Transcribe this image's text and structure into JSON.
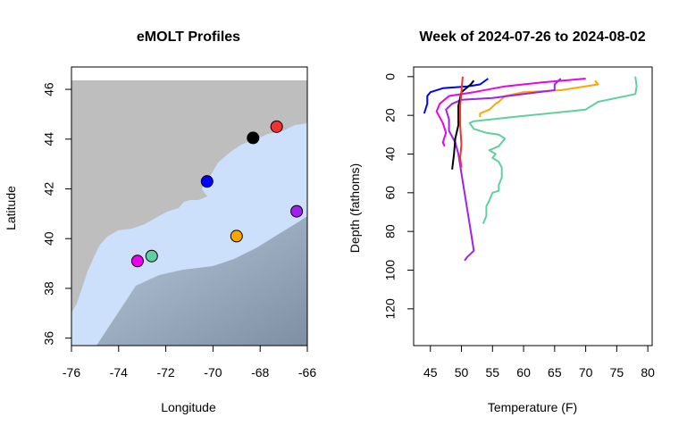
{
  "chart_data": [
    {
      "type": "scatter",
      "title": "eMOLT Profiles",
      "xlabel": "Longitude",
      "ylabel": "Latitude",
      "xlim": [
        -76,
        -66
      ],
      "ylim": [
        35.7,
        46.9
      ],
      "xticks": [
        "-76",
        "-74",
        "-72",
        "-70",
        "-68",
        "-66"
      ],
      "yticks": [
        "36",
        "38",
        "40",
        "42",
        "44",
        "46"
      ],
      "background": "map (land grey, ocean bathymetry blue)",
      "points": [
        {
          "x": -68.3,
          "y": 44.05,
          "color": "#000000"
        },
        {
          "x": -67.3,
          "y": 44.5,
          "color": "#ee3333"
        },
        {
          "x": -70.25,
          "y": 42.3,
          "color": "#0000ff"
        },
        {
          "x": -66.45,
          "y": 41.1,
          "color": "#a020f0"
        },
        {
          "x": -69.0,
          "y": 40.1,
          "color": "#ffa500"
        },
        {
          "x": -72.6,
          "y": 39.3,
          "color": "#5fcfa0"
        },
        {
          "x": -73.2,
          "y": 39.1,
          "color": "#ee00ee"
        }
      ]
    },
    {
      "type": "line",
      "title": "Week of 2024-07-26 to 2024-08-02",
      "xlabel": "Temperature (F)",
      "ylabel": "Depth (fathoms)",
      "xlim": [
        42.3,
        80.7
      ],
      "ylim": [
        139,
        -5
      ],
      "xticks": [
        "45",
        "50",
        "55",
        "60",
        "65",
        "70",
        "75",
        "80"
      ],
      "yticks": [
        "0",
        "20",
        "40",
        "60",
        "80",
        "100",
        "120"
      ],
      "series": [
        {
          "color": "#5fcfa0",
          "points": [
            [
              78.0,
              0
            ],
            [
              78.2,
              5
            ],
            [
              78.0,
              9
            ],
            [
              72.0,
              13
            ],
            [
              70.0,
              17
            ],
            [
              58.0,
              21
            ],
            [
              52.0,
              23
            ],
            [
              51.3,
              24
            ],
            [
              52.0,
              27
            ],
            [
              54.0,
              29
            ],
            [
              56.0,
              30
            ],
            [
              57.0,
              32
            ],
            [
              56.5,
              34
            ],
            [
              56.0,
              36
            ],
            [
              54.5,
              38
            ],
            [
              55.5,
              40
            ],
            [
              55.0,
              42
            ],
            [
              56.0,
              44
            ],
            [
              56.5,
              47
            ],
            [
              56.5,
              52
            ],
            [
              56.0,
              56
            ],
            [
              56.0,
              59
            ],
            [
              55.0,
              60
            ],
            [
              54.5,
              64
            ],
            [
              54.0,
              67
            ],
            [
              54.0,
              72
            ],
            [
              53.5,
              76
            ]
          ]
        },
        {
          "color": "#ffa500",
          "points": [
            [
              71.5,
              2
            ],
            [
              72.0,
              4
            ],
            [
              66.0,
              7
            ],
            [
              60.0,
              8
            ],
            [
              57.0,
              10
            ],
            [
              56.0,
              13
            ],
            [
              55.5,
              14
            ],
            [
              54.5,
              17
            ],
            [
              53.0,
              19
            ],
            [
              53.0,
              21
            ]
          ]
        },
        {
          "color": "#ee00ee",
          "points": [
            [
              70.0,
              1
            ],
            [
              63.0,
              3
            ],
            [
              57.0,
              5
            ],
            [
              52.0,
              8
            ],
            [
              48.0,
              10
            ],
            [
              46.5,
              14
            ],
            [
              46.0,
              18
            ],
            [
              47.0,
              24
            ],
            [
              47.5,
              29
            ],
            [
              47.0,
              34
            ],
            [
              47.3,
              36
            ]
          ]
        },
        {
          "color": "#a020f0",
          "points": [
            [
              66.0,
              1
            ],
            [
              65.0,
              4
            ],
            [
              65.0,
              7
            ],
            [
              60.0,
              9
            ],
            [
              55.0,
              11
            ],
            [
              50.0,
              12
            ],
            [
              48.5,
              14
            ],
            [
              47.5,
              17
            ],
            [
              48.0,
              22
            ],
            [
              48.0,
              28
            ],
            [
              49.0,
              34
            ],
            [
              49.5,
              40
            ],
            [
              50.0,
              50
            ],
            [
              50.5,
              60
            ],
            [
              51.0,
              70
            ],
            [
              51.5,
              80
            ],
            [
              52.0,
              90
            ],
            [
              51.0,
              93
            ],
            [
              50.5,
              95
            ]
          ]
        },
        {
          "color": "#0000ff",
          "points": [
            [
              54.3,
              1
            ],
            [
              53.0,
              4
            ],
            [
              51.0,
              5
            ],
            [
              47.0,
              6
            ],
            [
              45.0,
              8
            ],
            [
              44.5,
              10
            ],
            [
              44.5,
              14
            ],
            [
              44.0,
              19
            ]
          ]
        },
        {
          "color": "#000000",
          "points": [
            [
              52.0,
              2
            ],
            [
              51.5,
              4
            ],
            [
              50.0,
              8
            ],
            [
              49.5,
              15
            ],
            [
              49.5,
              25
            ],
            [
              49.0,
              32
            ],
            [
              48.8,
              40
            ],
            [
              48.5,
              48
            ]
          ]
        },
        {
          "color": "#ee3333",
          "points": [
            [
              50.2,
              0
            ],
            [
              50.0,
              8
            ],
            [
              49.8,
              15
            ],
            [
              49.8,
              25
            ],
            [
              50.0,
              35
            ],
            [
              49.8,
              42
            ],
            [
              50.0,
              47
            ]
          ]
        }
      ]
    }
  ]
}
